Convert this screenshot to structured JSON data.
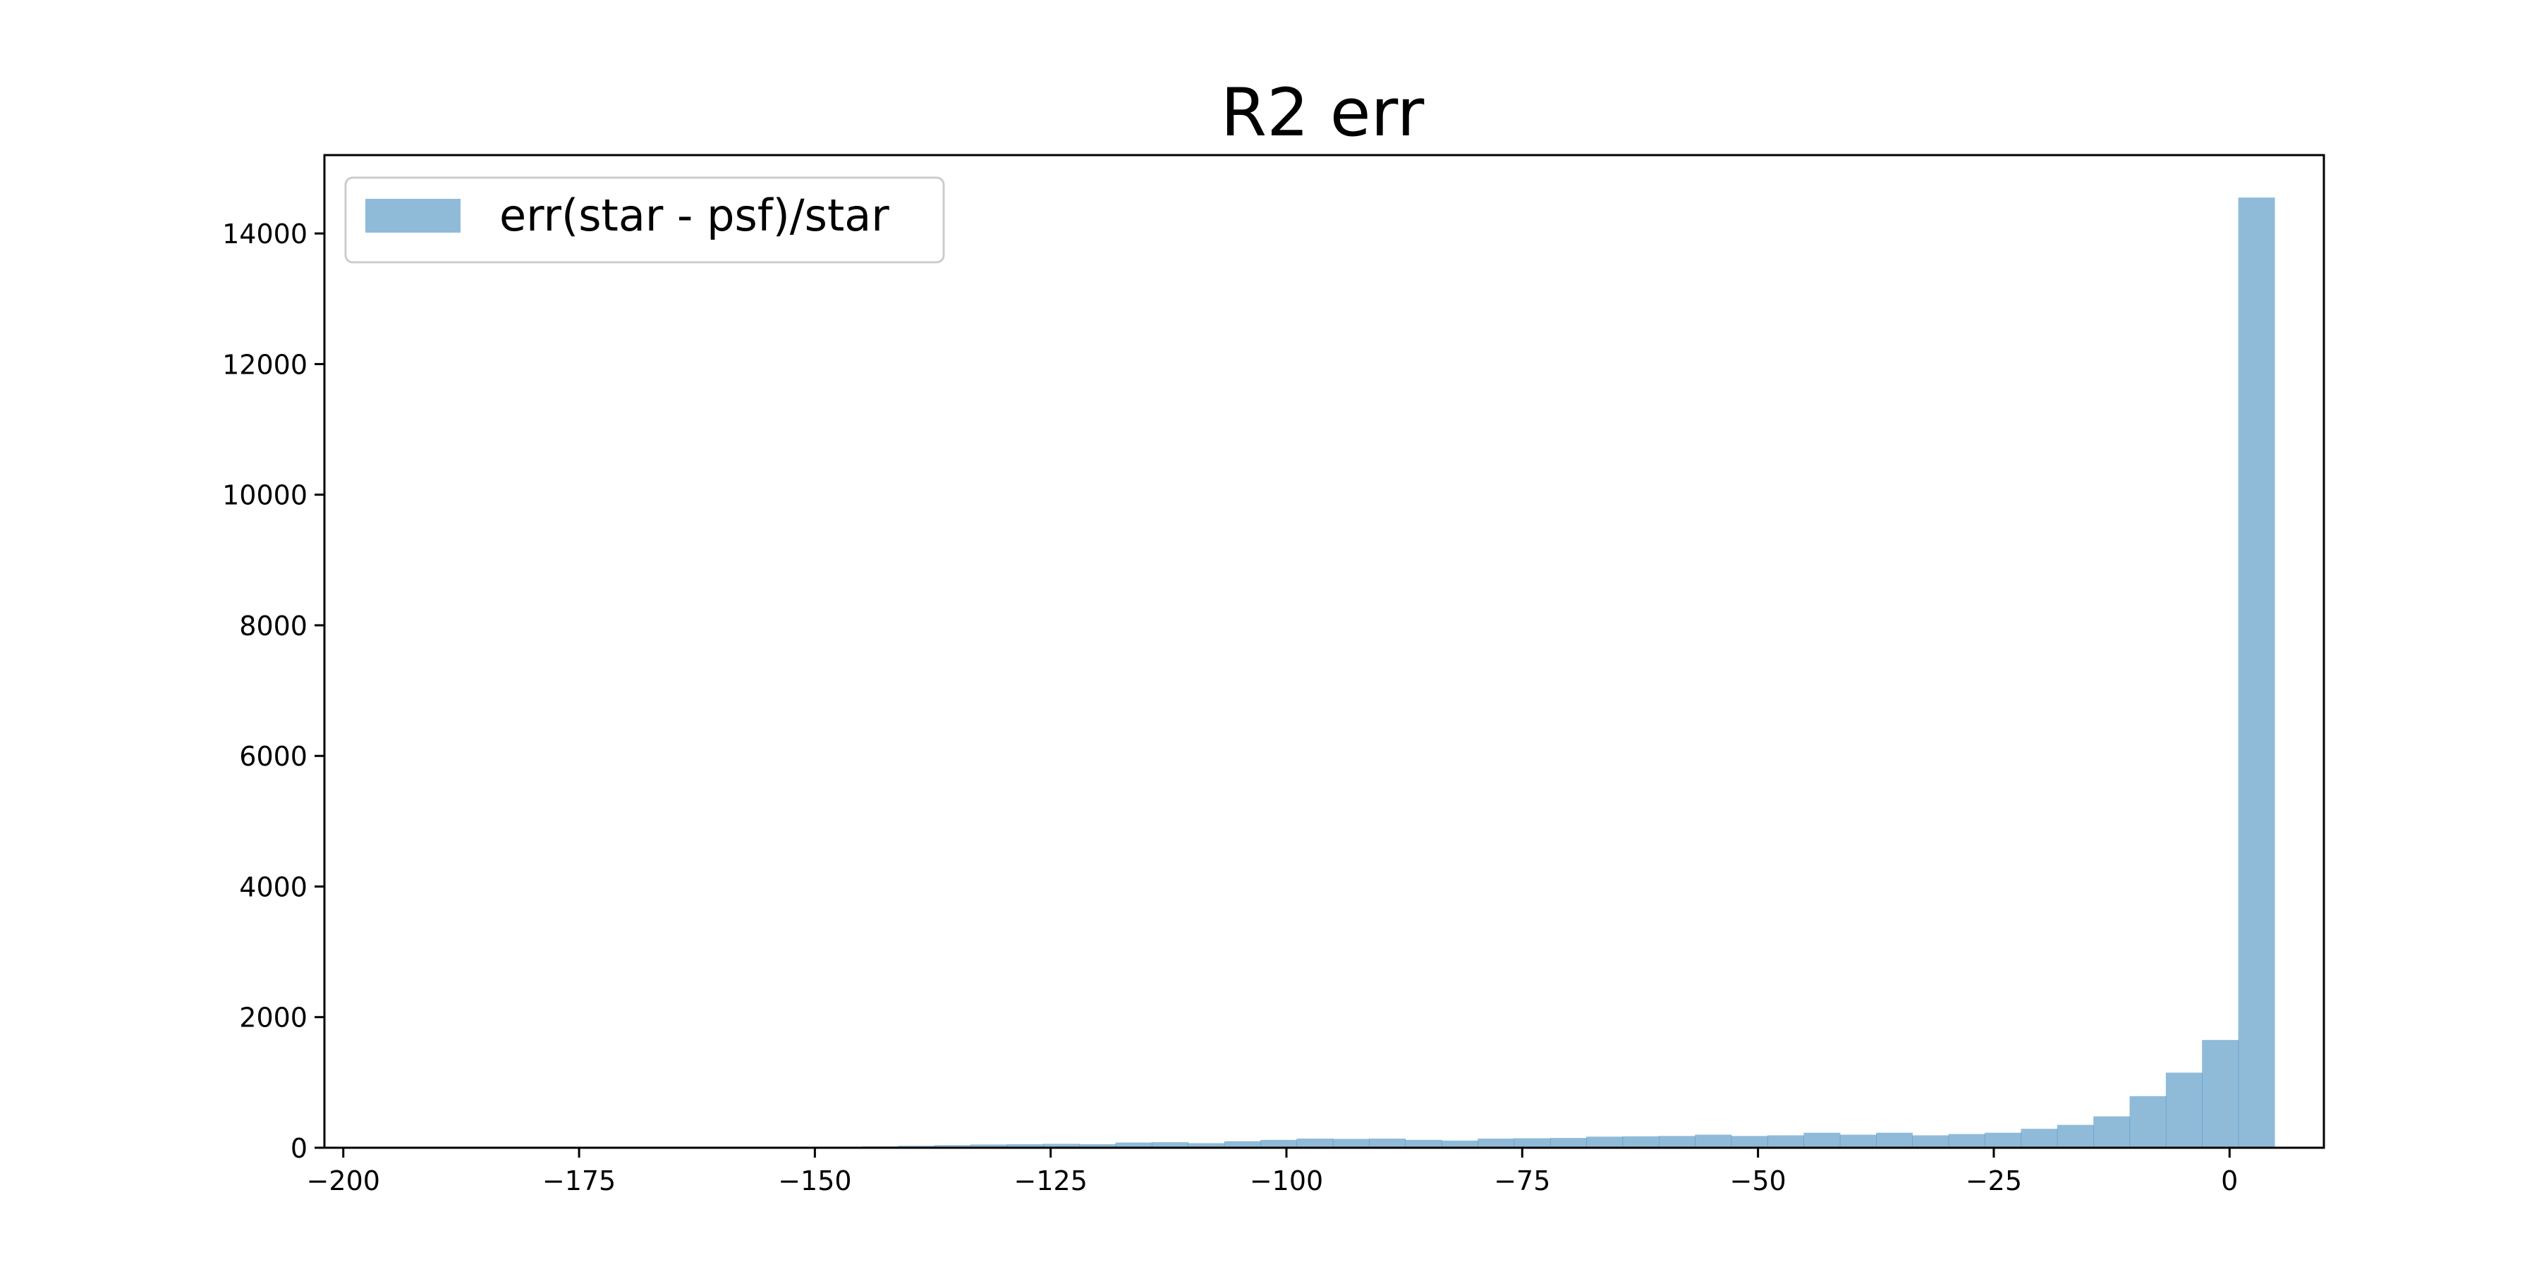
{
  "chart_data": {
    "type": "bar",
    "title": "R2 err",
    "xlabel": "",
    "ylabel": "",
    "xlim": [
      -202,
      10
    ],
    "ylim": [
      0,
      15200
    ],
    "xticks": [
      -200,
      -175,
      -150,
      -125,
      -100,
      -75,
      -50,
      -25,
      0
    ],
    "xtick_labels": [
      "−200",
      "−175",
      "−150",
      "−125",
      "−100",
      "−75",
      "−50",
      "−25",
      "0"
    ],
    "yticks": [
      0,
      2000,
      4000,
      6000,
      8000,
      10000,
      12000,
      14000
    ],
    "ytick_labels": [
      "0",
      "2000",
      "4000",
      "6000",
      "8000",
      "10000",
      "12000",
      "14000"
    ],
    "grid": false,
    "legend_position": "top-left",
    "bin_width": 3.84,
    "bin_edges_start": -145.0,
    "series": [
      {
        "name": "err(star - psf)/star",
        "color": "#1f77b4",
        "alpha": 0.5,
        "values": [
          20,
          30,
          40,
          50,
          55,
          60,
          55,
          80,
          85,
          70,
          100,
          120,
          140,
          135,
          140,
          120,
          110,
          140,
          145,
          150,
          170,
          175,
          180,
          200,
          180,
          190,
          230,
          200,
          230,
          190,
          210,
          230,
          290,
          350,
          480,
          790,
          1150,
          1650,
          14550
        ]
      }
    ]
  }
}
